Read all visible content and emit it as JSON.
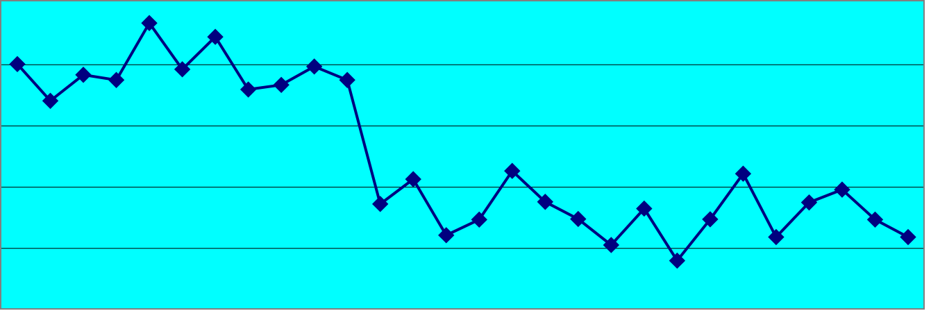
{
  "chart_data": {
    "type": "line",
    "title": "",
    "xlabel": "",
    "ylabel": "",
    "ylim": [
      0,
      100
    ],
    "grid": true,
    "gridlines_y": [
      20,
      40,
      60,
      80
    ],
    "legend": "none",
    "x": [
      1,
      2,
      3,
      4,
      5,
      6,
      7,
      8,
      9,
      10,
      11,
      12,
      13,
      14,
      15,
      16,
      17,
      18,
      19,
      20,
      21,
      22,
      23,
      24,
      25,
      26,
      27,
      28
    ],
    "series": [
      {
        "values": [
          80.2,
          68.2,
          76.7,
          75.0,
          93.6,
          78.5,
          89.1,
          71.9,
          73.4,
          79.4,
          75.0,
          34.5,
          42.6,
          24.3,
          29.4,
          45.3,
          35.2,
          29.6,
          21.1,
          33.0,
          16.0,
          29.5,
          44.4,
          23.7,
          35.0,
          39.2,
          29.4,
          23.7
        ]
      }
    ]
  },
  "colors": {
    "background": "#00ffff",
    "line": "#000080",
    "marker": "#000080",
    "grid": "#000000",
    "border": "#808080"
  }
}
